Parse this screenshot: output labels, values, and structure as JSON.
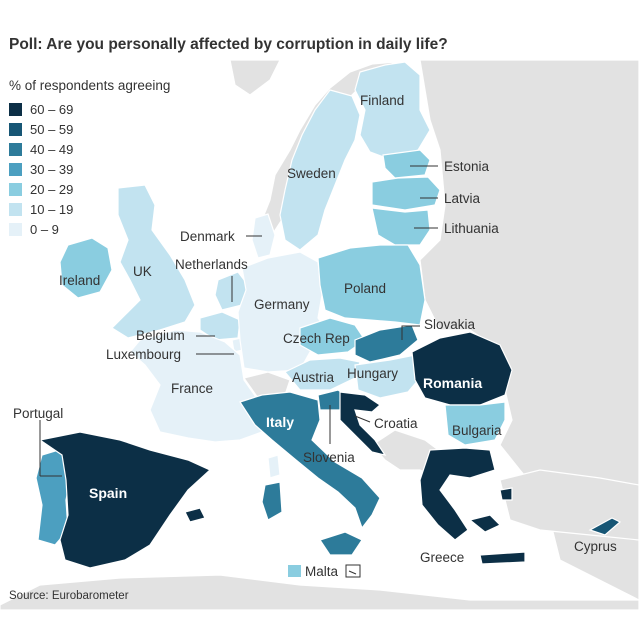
{
  "title": "Poll: Are you personally affected by corruption in daily life?",
  "legend": {
    "title": "% of respondents agreeing",
    "items": [
      {
        "label": "60 – 69",
        "color": "#0c2f46"
      },
      {
        "label": "50 – 59",
        "color": "#175675"
      },
      {
        "label": "40 – 49",
        "color": "#2d7b9a"
      },
      {
        "label": "30 – 39",
        "color": "#4c9fc0"
      },
      {
        "label": "20 – 29",
        "color": "#8acde0"
      },
      {
        "label": "10 – 19",
        "color": "#c2e3f0"
      },
      {
        "label": "0 – 9",
        "color": "#e5f1f8"
      }
    ]
  },
  "countries": [
    {
      "name": "Finland",
      "band": "10 – 19"
    },
    {
      "name": "Sweden",
      "band": "10 – 19"
    },
    {
      "name": "Estonia",
      "band": "20 – 29"
    },
    {
      "name": "Latvia",
      "band": "20 – 29"
    },
    {
      "name": "Lithuania",
      "band": "20 – 29"
    },
    {
      "name": "Denmark",
      "band": "0 – 9"
    },
    {
      "name": "Ireland",
      "band": "20 – 29"
    },
    {
      "name": "UK",
      "band": "10 – 19"
    },
    {
      "name": "Netherlands",
      "band": "10 – 19"
    },
    {
      "name": "Germany",
      "band": "0 – 9"
    },
    {
      "name": "Poland",
      "band": "20 – 29"
    },
    {
      "name": "Belgium",
      "band": "10 – 19"
    },
    {
      "name": "Luxembourg",
      "band": "0 – 9"
    },
    {
      "name": "Czech Rep",
      "band": "20 – 29"
    },
    {
      "name": "Slovakia",
      "band": "40 – 49"
    },
    {
      "name": "France",
      "band": "0 – 9"
    },
    {
      "name": "Austria",
      "band": "10 – 19"
    },
    {
      "name": "Hungary",
      "band": "10 – 19"
    },
    {
      "name": "Romania",
      "band": "60 – 69"
    },
    {
      "name": "Italy",
      "band": "40 – 49"
    },
    {
      "name": "Croatia",
      "band": "60 – 69"
    },
    {
      "name": "Slovenia",
      "band": "40 – 49"
    },
    {
      "name": "Bulgaria",
      "band": "20 – 29"
    },
    {
      "name": "Portugal",
      "band": "30 – 39"
    },
    {
      "name": "Spain",
      "band": "60 – 69"
    },
    {
      "name": "Greece",
      "band": "60 – 69"
    },
    {
      "name": "Cyprus",
      "band": "50 – 59"
    },
    {
      "name": "Malta",
      "band": "20 – 29"
    }
  ],
  "source": "Source: Eurobarometer"
}
